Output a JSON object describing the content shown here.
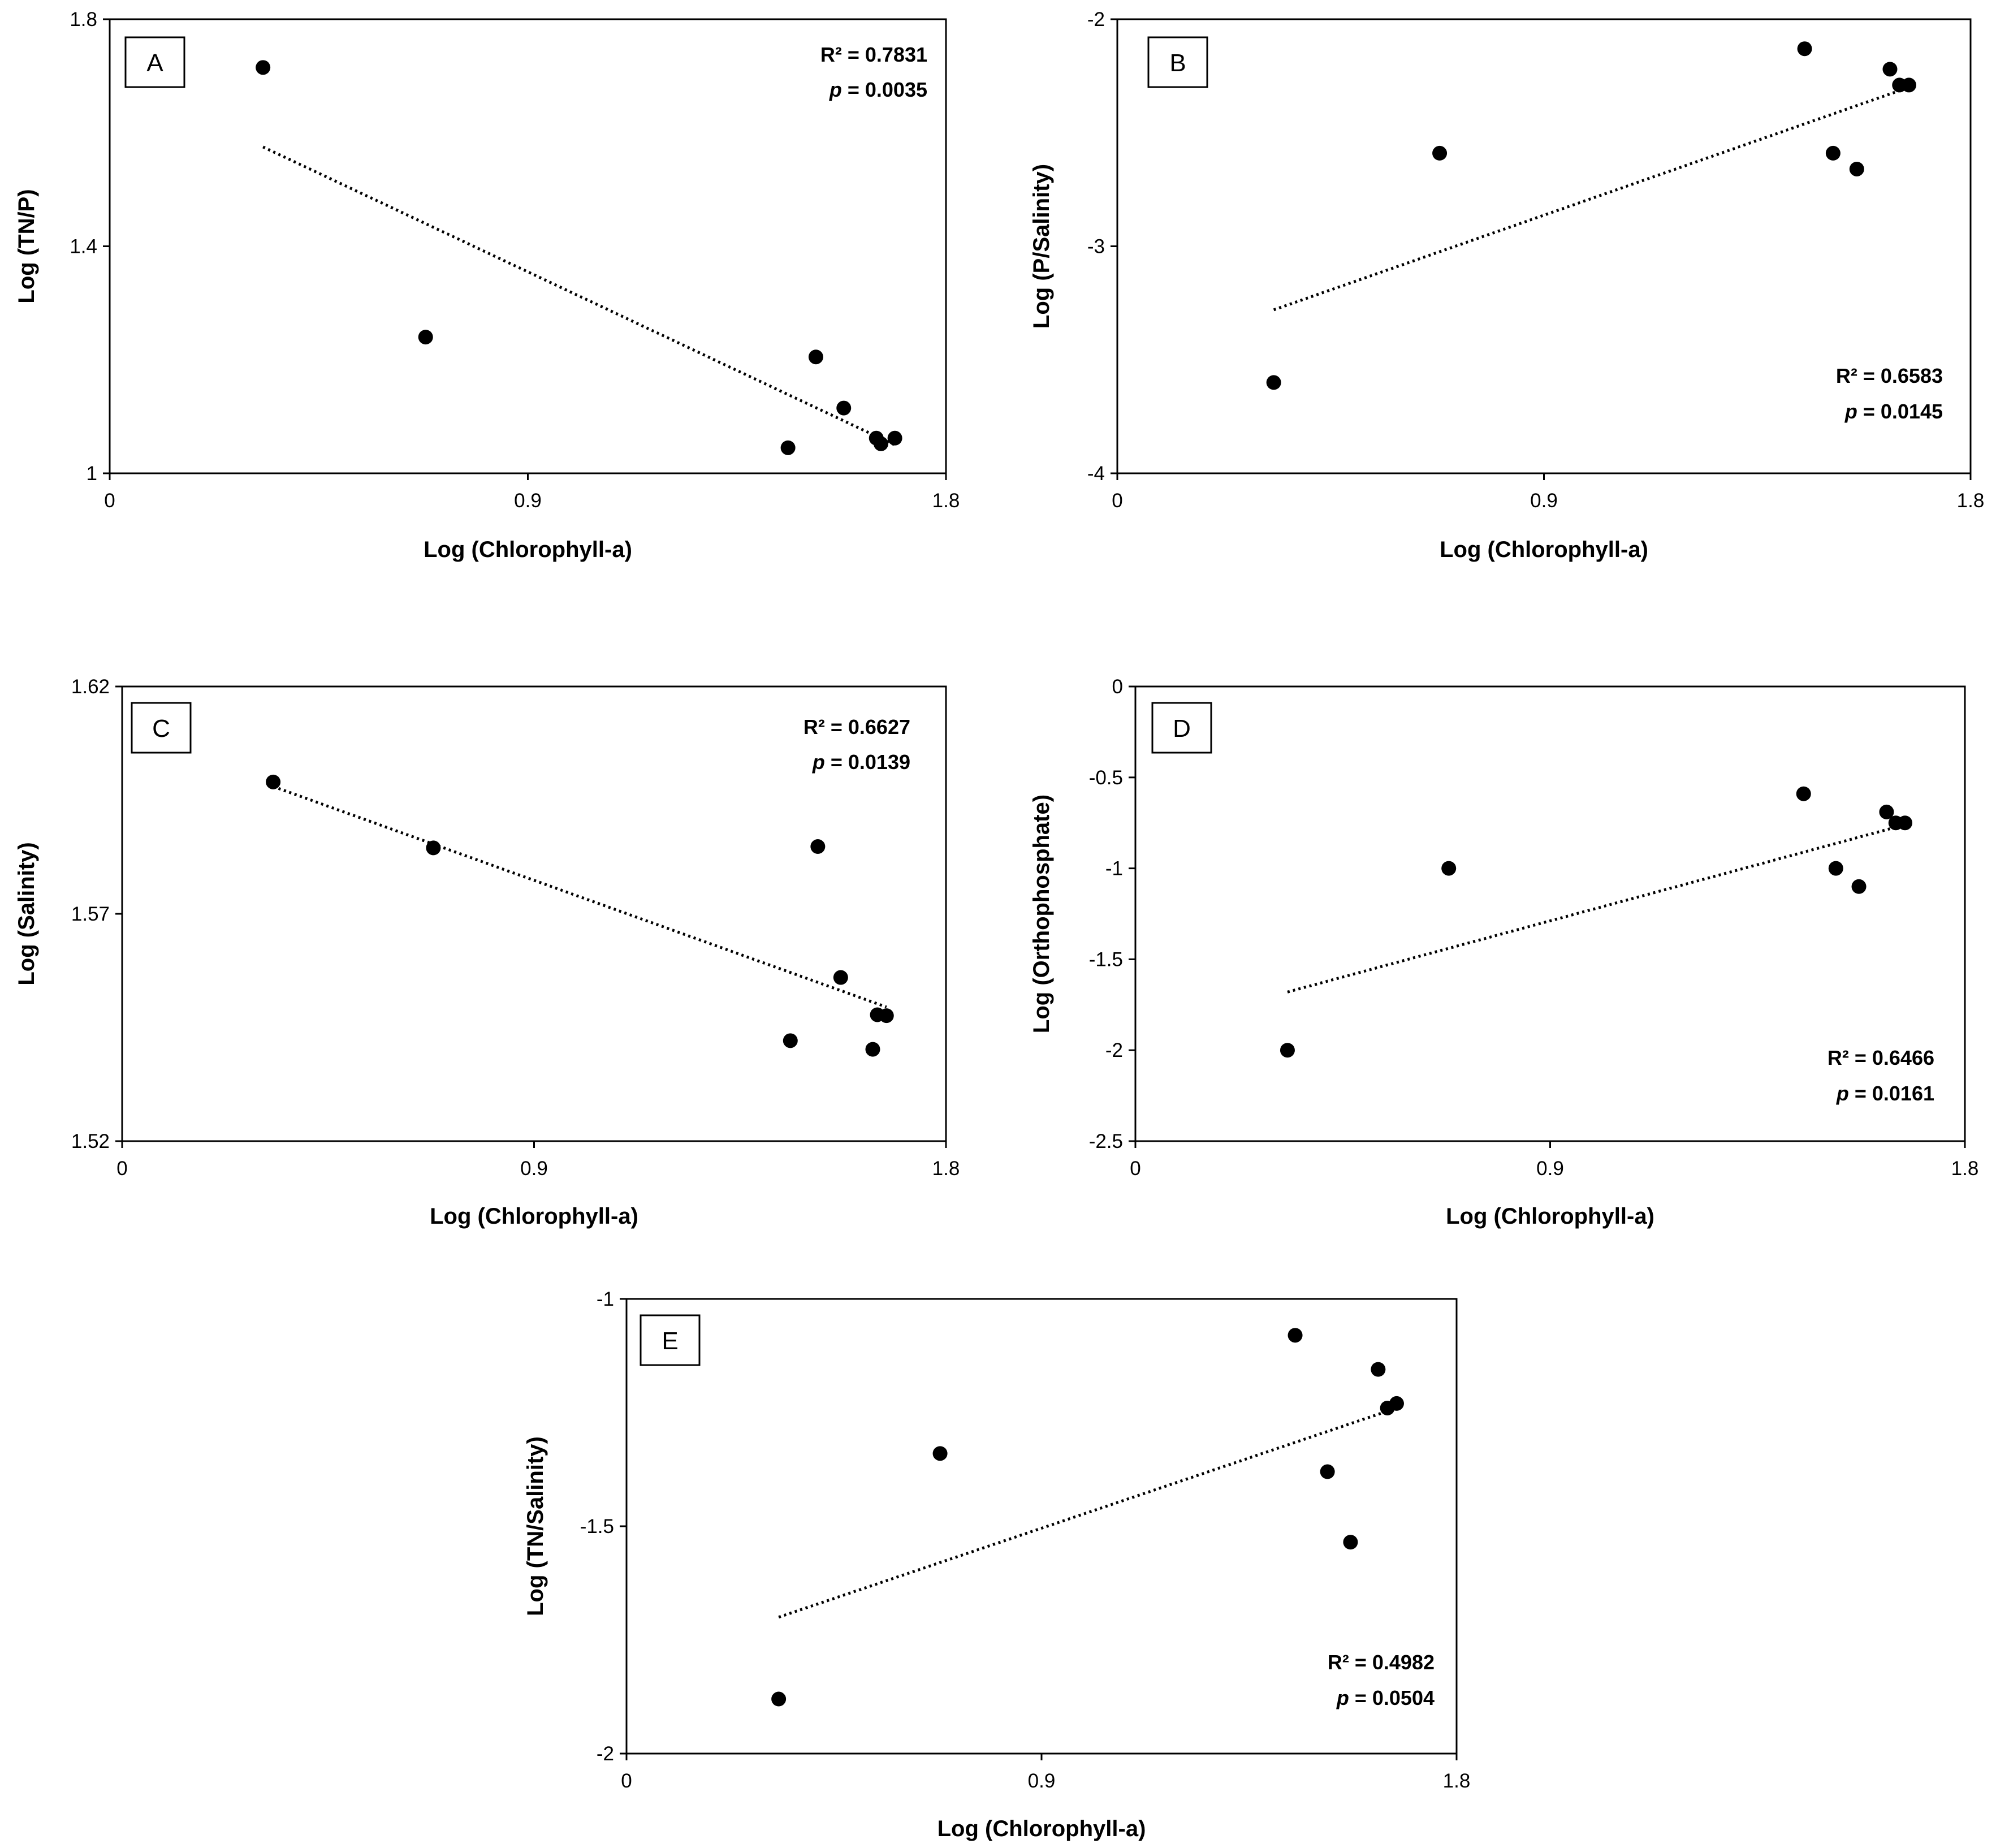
{
  "chart_data": [
    {
      "type": "scatter",
      "panel": "A",
      "xlabel": "Log (Chlorophyll-a)",
      "ylabel": "Log (TN/P)",
      "xlim": [
        0,
        1.8
      ],
      "ylim": [
        1,
        1.8
      ],
      "xticks": [
        "0",
        "0.9",
        "1.8"
      ],
      "yticks": [
        "1",
        "1.4",
        "1.8"
      ],
      "x": [
        0.33,
        0.68,
        1.46,
        1.52,
        1.58,
        1.65,
        1.66,
        1.69
      ],
      "y": [
        1.715,
        1.24,
        1.045,
        1.205,
        1.115,
        1.062,
        1.052,
        1.062
      ],
      "trendline": {
        "x": [
          0.33,
          1.69
        ],
        "y": [
          1.575,
          1.05
        ]
      },
      "r2_text": "R² = 0.7831",
      "p_label": "p",
      "p_value": " = 0.0035",
      "stats_position": "top-right"
    },
    {
      "type": "scatter",
      "panel": "B",
      "xlabel": "Log (Chlorophyll-a)",
      "ylabel": "Log (P/Salinity)",
      "xlim": [
        0,
        1.8
      ],
      "ylim": [
        -4,
        -2
      ],
      "xticks": [
        "0",
        "0.9",
        "1.8"
      ],
      "yticks": [
        "-4",
        "-3",
        "-2"
      ],
      "x": [
        0.33,
        0.68,
        1.45,
        1.51,
        1.56,
        1.63,
        1.65,
        1.67
      ],
      "y": [
        -3.6,
        -2.59,
        -2.13,
        -2.59,
        -2.66,
        -2.22,
        -2.29,
        -2.29
      ],
      "trendline": {
        "x": [
          0.33,
          1.67
        ],
        "y": [
          -3.28,
          -2.3
        ]
      },
      "r2_text": "R² = 0.6583",
      "p_label": "p",
      "p_value": " = 0.0145",
      "stats_position": "bottom-right"
    },
    {
      "type": "scatter",
      "panel": "C",
      "xlabel": "Log (Chlorophyll-a)",
      "ylabel": "Log (Salinity)",
      "xlim": [
        0,
        1.8
      ],
      "ylim": [
        1.52,
        1.62
      ],
      "xticks": [
        "0",
        "0.9",
        "1.8"
      ],
      "yticks": [
        "1.52",
        "1.57",
        "1.62"
      ],
      "x": [
        0.33,
        0.68,
        1.46,
        1.52,
        1.57,
        1.64,
        1.65,
        1.67
      ],
      "y": [
        1.599,
        1.5845,
        1.5421,
        1.5848,
        1.556,
        1.5402,
        1.5478,
        1.5476
      ],
      "trendline": {
        "x": [
          0.33,
          1.67
        ],
        "y": [
          1.598,
          1.5495
        ]
      },
      "r2_text": "R² = 0.6627",
      "p_label": "p",
      "p_value": " = 0.0139",
      "stats_position": "top-right"
    },
    {
      "type": "scatter",
      "panel": "D",
      "xlabel": "Log (Chlorophyll-a)",
      "ylabel": "Log (Orthophosphate)",
      "xlim": [
        0,
        1.8
      ],
      "ylim": [
        -2.5,
        0
      ],
      "xticks": [
        "0",
        "0.9",
        "1.8"
      ],
      "yticks": [
        "-2.5",
        "-2",
        "-1.5",
        "-1",
        "-0.5",
        "0"
      ],
      "x": [
        0.33,
        0.68,
        1.45,
        1.52,
        1.57,
        1.63,
        1.65,
        1.67
      ],
      "y": [
        -2.0,
        -1.0,
        -0.59,
        -1.0,
        -1.1,
        -0.69,
        -0.75,
        -0.75
      ],
      "trendline": {
        "x": [
          0.33,
          1.67
        ],
        "y": [
          -1.68,
          -0.76
        ]
      },
      "r2_text": "R² = 0.6466",
      "p_label": "p",
      "p_value": " = 0.0161",
      "stats_position": "bottom-right"
    },
    {
      "type": "scatter",
      "panel": "E",
      "xlabel": "Log (Chlorophyll-a)",
      "ylabel": "Log (TN/Salinity)",
      "xlim": [
        0,
        1.8
      ],
      "ylim": [
        -2,
        -1
      ],
      "xticks": [
        "0",
        "0.9",
        "1.8"
      ],
      "yticks": [
        "-2",
        "-1.5",
        "-1"
      ],
      "x": [
        0.33,
        0.68,
        1.45,
        1.52,
        1.57,
        1.63,
        1.65,
        1.67
      ],
      "y": [
        -1.88,
        -1.34,
        -1.08,
        -1.38,
        -1.535,
        -1.155,
        -1.24,
        -1.23
      ],
      "trendline": {
        "x": [
          0.33,
          1.67
        ],
        "y": [
          -1.7,
          -1.24
        ]
      },
      "r2_text": "R² = 0.4982",
      "p_label": "p",
      "p_value": " = 0.0504",
      "stats_position": "bottom-right"
    }
  ]
}
